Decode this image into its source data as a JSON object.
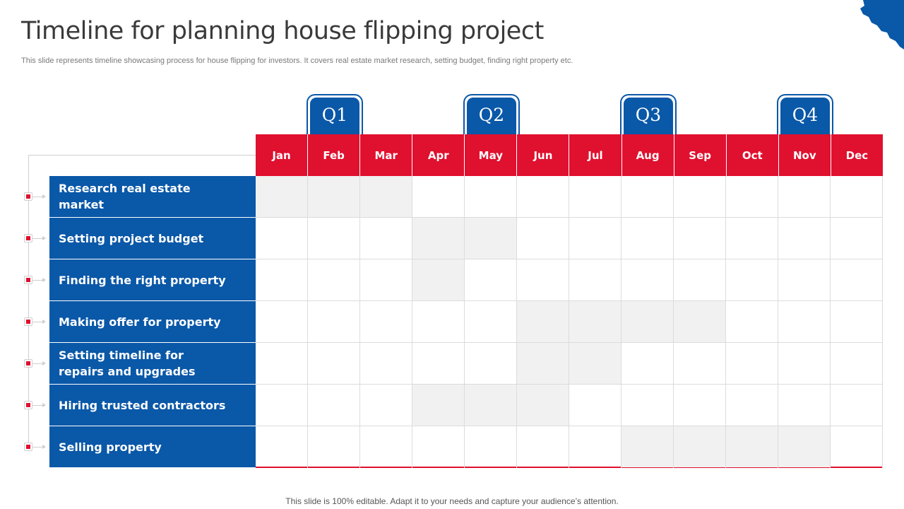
{
  "slide": {
    "title": "Timeline for planning house flipping project",
    "subtitle": "This slide represents timeline showcasing process for house flipping for investors. It covers real estate market research, setting budget, finding right property etc.",
    "footer": "This slide is 100% editable. Adapt it to your needs and capture your audience’s attention."
  },
  "colors": {
    "primary_blue": "#0a58a8",
    "accent_red": "#e0102f",
    "bar_gray": "#f1f1f1"
  },
  "quarters": [
    {
      "label": "Q1",
      "month_index": 1
    },
    {
      "label": "Q2",
      "month_index": 4
    },
    {
      "label": "Q3",
      "month_index": 7
    },
    {
      "label": "Q4",
      "month_index": 10
    }
  ],
  "months": [
    "Jan",
    "Feb",
    "Mar",
    "Apr",
    "May",
    "Jun",
    "Jul",
    "Aug",
    "Sep",
    "Oct",
    "Nov",
    "Dec"
  ],
  "tasks": [
    {
      "label": "Research real estate market",
      "start": "Jan",
      "end": "Apr"
    },
    {
      "label": "Setting project budget",
      "start": "Apr",
      "end": "Jun"
    },
    {
      "label": "Finding the right property",
      "start": "Apr",
      "end": "May"
    },
    {
      "label": "Making offer for property",
      "start": "Jun",
      "end": "Oct"
    },
    {
      "label": "Setting timeline for repairs and upgrades",
      "start": "Jun",
      "end": "Aug"
    },
    {
      "label": "Hiring trusted contractors",
      "start": "Apr",
      "end": "Jul"
    },
    {
      "label": "Selling property",
      "start": "Aug",
      "end": "Dec"
    }
  ]
}
